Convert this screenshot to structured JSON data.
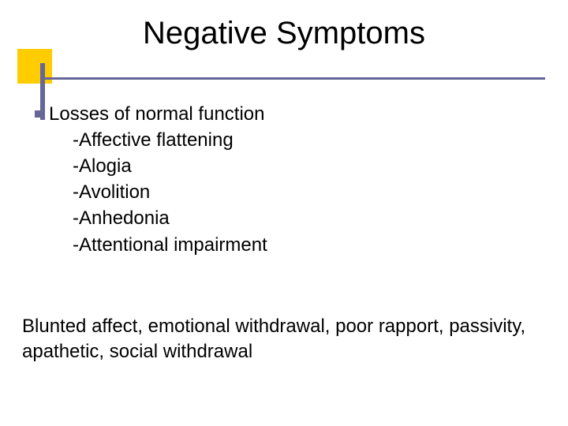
{
  "colors": {
    "accent_square": "#ffcc00",
    "accent_bar": "#666699",
    "text": "#000000",
    "background": "#ffffff"
  },
  "typography": {
    "title_fontsize_pt": 40,
    "body_fontsize_pt": 24,
    "font_family": "Verdana"
  },
  "title": "Negative Symptoms",
  "main_point": "Losses of normal function",
  "sub_points": [
    "-Affective flattening",
    "-Alogia",
    "-Avolition",
    "-Anhedonia",
    "-Attentional impairment"
  ],
  "summary": "Blunted affect, emotional withdrawal, poor rapport, passivity, apathetic, social withdrawal"
}
